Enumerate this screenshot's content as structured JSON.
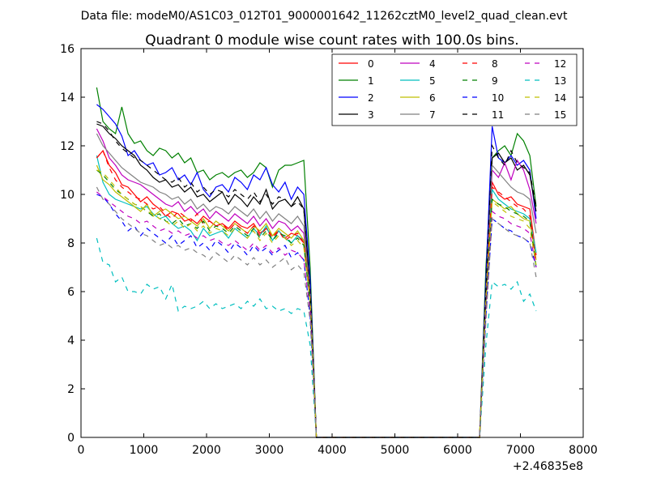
{
  "chart_data": {
    "type": "line",
    "suptitle": "Data file: modeM0/AS1C03_012T01_9000001642_11262cztM0_level2_quad_clean.evt",
    "title": "Quadrant 0 module wise count rates with 100.0s bins.",
    "xlabel": "",
    "ylabel": "",
    "offset_text": "+2.46835e8",
    "xlim": [
      0,
      8000
    ],
    "ylim": [
      0,
      16
    ],
    "xticks": [
      0,
      1000,
      2000,
      3000,
      4000,
      5000,
      6000,
      7000,
      8000
    ],
    "yticks": [
      0,
      2,
      4,
      6,
      8,
      10,
      12,
      14,
      16
    ],
    "grid": false,
    "legend_position": "top-right",
    "x": [
      250,
      350,
      450,
      550,
      650,
      750,
      850,
      950,
      1050,
      1150,
      1250,
      1350,
      1450,
      1550,
      1650,
      1750,
      1850,
      1950,
      2050,
      2150,
      2250,
      2350,
      2450,
      2550,
      2650,
      2750,
      2850,
      2950,
      3050,
      3150,
      3250,
      3350,
      3450,
      3550,
      3650,
      3750,
      3850,
      3950,
      4050,
      4150,
      4250,
      4350,
      4450,
      4550,
      4650,
      4750,
      4850,
      4950,
      5050,
      5150,
      5250,
      5350,
      5450,
      5550,
      5650,
      5750,
      5850,
      5950,
      6050,
      6150,
      6250,
      6350,
      6450,
      6550,
      6650,
      6750,
      6850,
      6950,
      7050,
      7150,
      7250
    ],
    "series": [
      {
        "name": "0",
        "color": "#ff0000",
        "dash": "solid",
        "values": [
          11.5,
          11.8,
          11.2,
          10.9,
          10.4,
          10.3,
          10.0,
          9.7,
          9.9,
          9.6,
          9.4,
          9.1,
          9.3,
          9.2,
          8.9,
          9.0,
          8.8,
          9.1,
          8.9,
          8.7,
          8.8,
          8.6,
          8.9,
          8.7,
          8.6,
          8.8,
          8.4,
          8.6,
          8.3,
          8.5,
          8.2,
          8.4,
          8.3,
          8.0,
          6.0,
          0.0,
          0,
          0,
          0,
          0,
          0,
          0,
          0,
          0,
          0,
          0,
          0,
          0,
          0,
          0,
          0,
          0,
          0,
          0,
          0,
          0,
          0,
          0,
          0,
          0,
          0,
          0,
          6.0,
          10.5,
          10.0,
          9.8,
          9.9,
          9.6,
          9.5,
          9.4,
          7.5
        ]
      },
      {
        "name": "1",
        "color": "#008000",
        "dash": "solid",
        "values": [
          14.4,
          13.0,
          12.7,
          12.5,
          13.6,
          12.5,
          12.1,
          12.2,
          11.8,
          11.6,
          11.9,
          11.8,
          11.5,
          11.7,
          11.3,
          11.5,
          10.9,
          11.0,
          10.6,
          10.8,
          10.9,
          10.7,
          10.9,
          11.0,
          10.7,
          10.9,
          11.3,
          11.1,
          10.3,
          11.0,
          11.2,
          11.2,
          11.3,
          11.4,
          7.0,
          0.0,
          0,
          0,
          0,
          0,
          0,
          0,
          0,
          0,
          0,
          0,
          0,
          0,
          0,
          0,
          0,
          0,
          0,
          0,
          0,
          0,
          0,
          0,
          0,
          0,
          0,
          0,
          7.0,
          11.5,
          11.8,
          12.0,
          11.6,
          12.5,
          12.2,
          11.6,
          9.5
        ]
      },
      {
        "name": "2",
        "color": "#0000ff",
        "dash": "solid",
        "values": [
          13.7,
          13.5,
          13.2,
          12.9,
          12.4,
          11.6,
          11.8,
          11.4,
          11.2,
          11.3,
          10.8,
          10.9,
          11.1,
          10.6,
          10.8,
          10.4,
          10.9,
          10.2,
          9.9,
          10.3,
          10.4,
          10.1,
          10.7,
          10.5,
          10.2,
          10.8,
          10.6,
          11.1,
          10.4,
          10.1,
          10.5,
          9.8,
          10.3,
          10.0,
          6.5,
          0.0,
          0,
          0,
          0,
          0,
          0,
          0,
          0,
          0,
          0,
          0,
          0,
          0,
          0,
          0,
          0,
          0,
          0,
          0,
          0,
          0,
          0,
          0,
          0,
          0,
          0,
          0,
          6.5,
          12.8,
          11.5,
          11.3,
          11.6,
          11.2,
          11.4,
          11.0,
          9.0
        ]
      },
      {
        "name": "3",
        "color": "#000000",
        "dash": "solid",
        "values": [
          12.9,
          12.8,
          12.5,
          12.3,
          12.0,
          11.8,
          11.6,
          11.2,
          11.0,
          10.7,
          10.5,
          10.6,
          10.3,
          10.4,
          10.1,
          10.3,
          9.9,
          10.0,
          9.7,
          9.9,
          10.1,
          9.6,
          10.0,
          9.8,
          9.5,
          9.9,
          9.6,
          10.2,
          9.4,
          9.7,
          9.8,
          9.5,
          9.9,
          9.4,
          6.0,
          0.0,
          0,
          0,
          0,
          0,
          0,
          0,
          0,
          0,
          0,
          0,
          0,
          0,
          0,
          0,
          0,
          0,
          0,
          0,
          0,
          0,
          0,
          0,
          0,
          0,
          0,
          0,
          6.0,
          11.5,
          11.7,
          11.3,
          11.5,
          11.0,
          11.2,
          10.8,
          9.3
        ]
      },
      {
        "name": "4",
        "color": "#bf00bf",
        "dash": "solid",
        "values": [
          12.7,
          12.2,
          11.5,
          11.2,
          10.8,
          10.6,
          10.5,
          10.4,
          10.2,
          10.0,
          9.8,
          9.6,
          9.5,
          9.7,
          9.3,
          9.5,
          9.2,
          9.4,
          9.0,
          9.3,
          9.1,
          8.9,
          9.2,
          9.0,
          8.8,
          9.1,
          8.7,
          9.0,
          8.6,
          8.9,
          8.8,
          8.5,
          8.7,
          8.4,
          5.8,
          0.0,
          0,
          0,
          0,
          0,
          0,
          0,
          0,
          0,
          0,
          0,
          0,
          0,
          0,
          0,
          0,
          0,
          0,
          0,
          0,
          0,
          0,
          0,
          0,
          0,
          0,
          0,
          5.8,
          11.0,
          10.7,
          11.3,
          10.6,
          11.4,
          11.0,
          10.2,
          8.8
        ]
      },
      {
        "name": "5",
        "color": "#00bfbf",
        "dash": "solid",
        "values": [
          11.6,
          10.5,
          10.0,
          9.8,
          9.7,
          9.6,
          9.5,
          9.4,
          9.5,
          9.2,
          9.0,
          9.1,
          8.8,
          8.6,
          8.7,
          8.5,
          8.1,
          8.6,
          8.3,
          8.4,
          8.5,
          8.2,
          8.6,
          8.4,
          8.2,
          8.6,
          8.3,
          8.7,
          8.1,
          8.5,
          8.2,
          8.0,
          8.3,
          8.1,
          5.5,
          0.0,
          0,
          0,
          0,
          0,
          0,
          0,
          0,
          0,
          0,
          0,
          0,
          0,
          0,
          0,
          0,
          0,
          0,
          0,
          0,
          0,
          0,
          0,
          0,
          0,
          0,
          0,
          5.5,
          10.2,
          9.8,
          9.6,
          9.4,
          9.3,
          9.2,
          9.0,
          7.6
        ]
      },
      {
        "name": "6",
        "color": "#bfbf00",
        "dash": "solid",
        "values": [
          11.2,
          10.6,
          10.4,
          10.1,
          9.9,
          9.7,
          9.5,
          9.3,
          9.6,
          9.1,
          9.3,
          9.4,
          9.2,
          9.0,
          9.1,
          8.9,
          8.7,
          9.0,
          8.6,
          8.9,
          8.7,
          8.5,
          8.8,
          8.6,
          8.4,
          8.7,
          8.5,
          8.8,
          8.3,
          8.6,
          8.4,
          8.2,
          8.5,
          8.1,
          5.6,
          0.0,
          0,
          0,
          0,
          0,
          0,
          0,
          0,
          0,
          0,
          0,
          0,
          0,
          0,
          0,
          0,
          0,
          0,
          0,
          0,
          0,
          0,
          0,
          0,
          0,
          0,
          0,
          5.6,
          9.8,
          9.6,
          9.4,
          9.5,
          9.2,
          9.0,
          8.9,
          7.3
        ]
      },
      {
        "name": "7",
        "color": "#808080",
        "dash": "solid",
        "values": [
          12.5,
          12.0,
          11.7,
          11.4,
          11.1,
          10.9,
          10.7,
          10.5,
          10.4,
          10.3,
          10.1,
          10.0,
          9.8,
          9.9,
          9.6,
          9.8,
          9.4,
          9.6,
          9.3,
          9.5,
          9.4,
          9.2,
          9.5,
          9.3,
          9.1,
          9.4,
          9.0,
          9.3,
          8.9,
          9.2,
          9.0,
          8.8,
          9.1,
          8.7,
          5.9,
          0.0,
          0,
          0,
          0,
          0,
          0,
          0,
          0,
          0,
          0,
          0,
          0,
          0,
          0,
          0,
          0,
          0,
          0,
          0,
          0,
          0,
          0,
          0,
          0,
          0,
          0,
          0,
          5.9,
          11.2,
          10.9,
          10.6,
          10.3,
          10.1,
          10.0,
          9.8,
          8.4
        ]
      },
      {
        "name": "8",
        "color": "#ff0000",
        "dash": "dashed",
        "values": [
          11.5,
          11.8,
          11.1,
          10.6,
          10.3,
          10.1,
          9.9,
          9.8,
          9.6,
          9.4,
          9.5,
          9.2,
          9.0,
          9.3,
          9.1,
          8.9,
          9.2,
          8.8,
          8.9,
          8.7,
          8.8,
          8.5,
          8.8,
          8.6,
          8.4,
          8.7,
          8.3,
          8.6,
          8.2,
          8.5,
          8.1,
          8.3,
          8.4,
          8.0,
          5.7,
          0.0,
          0,
          0,
          0,
          0,
          0,
          0,
          0,
          0,
          0,
          0,
          0,
          0,
          0,
          0,
          0,
          0,
          0,
          0,
          0,
          0,
          0,
          0,
          0,
          0,
          0,
          0,
          5.7,
          10.3,
          10.1,
          9.9,
          9.7,
          9.5,
          9.4,
          9.1,
          7.2
        ]
      },
      {
        "name": "9",
        "color": "#008000",
        "dash": "dashed",
        "values": [
          11.0,
          10.8,
          10.5,
          10.2,
          10.0,
          9.8,
          9.6,
          9.5,
          9.3,
          9.1,
          9.2,
          8.9,
          8.8,
          9.0,
          8.7,
          8.8,
          8.6,
          8.9,
          8.5,
          8.7,
          8.6,
          8.4,
          8.7,
          8.5,
          8.3,
          8.6,
          8.2,
          8.5,
          8.1,
          8.4,
          8.3,
          8.0,
          8.2,
          7.9,
          5.5,
          0.0,
          0,
          0,
          0,
          0,
          0,
          0,
          0,
          0,
          0,
          0,
          0,
          0,
          0,
          0,
          0,
          0,
          0,
          0,
          0,
          0,
          0,
          0,
          0,
          0,
          0,
          0,
          5.5,
          9.8,
          9.6,
          9.5,
          9.3,
          9.2,
          9.1,
          8.9,
          7.0
        ]
      },
      {
        "name": "10",
        "color": "#0000ff",
        "dash": "dashed",
        "values": [
          10.0,
          9.9,
          9.6,
          9.2,
          8.9,
          8.5,
          8.7,
          8.3,
          8.6,
          8.4,
          8.2,
          8.0,
          8.3,
          7.9,
          8.1,
          8.3,
          7.8,
          8.0,
          7.7,
          8.1,
          7.9,
          7.6,
          8.0,
          7.8,
          7.5,
          7.9,
          7.6,
          7.8,
          7.5,
          7.7,
          7.9,
          7.4,
          7.6,
          7.3,
          5.0,
          0.0,
          0,
          0,
          0,
          0,
          0,
          0,
          0,
          0,
          0,
          0,
          0,
          0,
          0,
          0,
          0,
          0,
          0,
          0,
          0,
          0,
          0,
          0,
          0,
          0,
          0,
          0,
          5.0,
          9.0,
          8.8,
          8.6,
          8.5,
          8.3,
          8.2,
          8.0,
          7.0
        ]
      },
      {
        "name": "11",
        "color": "#000000",
        "dash": "dashed",
        "values": [
          13.0,
          12.9,
          12.6,
          12.2,
          11.9,
          11.7,
          11.5,
          11.4,
          11.2,
          11.0,
          10.8,
          10.6,
          10.5,
          10.7,
          10.3,
          10.5,
          10.1,
          10.3,
          10.0,
          10.2,
          10.1,
          9.9,
          10.2,
          10.0,
          9.8,
          10.1,
          9.7,
          10.0,
          9.6,
          9.9,
          9.8,
          9.5,
          9.7,
          9.4,
          6.1,
          0.0,
          0,
          0,
          0,
          0,
          0,
          0,
          0,
          0,
          0,
          0,
          0,
          0,
          0,
          0,
          0,
          0,
          0,
          0,
          0,
          0,
          0,
          0,
          0,
          0,
          0,
          0,
          6.1,
          12.0,
          11.5,
          11.2,
          11.8,
          11.3,
          11.1,
          10.9,
          9.5
        ]
      },
      {
        "name": "12",
        "color": "#bf00bf",
        "dash": "dashed",
        "values": [
          10.1,
          9.9,
          9.7,
          9.5,
          9.3,
          9.1,
          9.0,
          8.8,
          8.9,
          8.7,
          8.5,
          8.6,
          8.4,
          8.5,
          8.3,
          8.4,
          8.2,
          8.3,
          8.1,
          8.2,
          8.0,
          7.9,
          8.1,
          7.9,
          7.7,
          8.0,
          7.7,
          7.9,
          7.6,
          7.8,
          7.5,
          7.7,
          7.6,
          7.3,
          5.2,
          0.0,
          0,
          0,
          0,
          0,
          0,
          0,
          0,
          0,
          0,
          0,
          0,
          0,
          0,
          0,
          0,
          0,
          0,
          0,
          0,
          0,
          0,
          0,
          0,
          0,
          0,
          0,
          5.2,
          9.3,
          9.1,
          9.0,
          8.8,
          8.7,
          8.6,
          8.4,
          7.0
        ]
      },
      {
        "name": "13",
        "color": "#00bfbf",
        "dash": "dashed",
        "values": [
          8.2,
          7.2,
          7.1,
          6.4,
          6.6,
          6.0,
          6.0,
          5.9,
          6.3,
          6.1,
          6.2,
          5.7,
          6.3,
          5.2,
          5.4,
          5.3,
          5.4,
          5.6,
          5.3,
          5.5,
          5.3,
          5.4,
          5.5,
          5.3,
          5.6,
          5.4,
          5.7,
          5.3,
          5.4,
          5.2,
          5.3,
          5.1,
          5.3,
          5.2,
          3.8,
          0.0,
          0,
          0,
          0,
          0,
          0,
          0,
          0,
          0,
          0,
          0,
          0,
          0,
          0,
          0,
          0,
          0,
          0,
          0,
          0,
          0,
          0,
          0,
          0,
          0,
          0,
          0,
          3.8,
          6.4,
          6.2,
          6.3,
          6.1,
          6.4,
          5.6,
          5.9,
          5.2
        ]
      },
      {
        "name": "14",
        "color": "#bfbf00",
        "dash": "dashed",
        "values": [
          11.0,
          10.9,
          10.6,
          10.3,
          10.0,
          9.8,
          9.6,
          9.5,
          9.3,
          9.2,
          9.0,
          8.9,
          8.7,
          8.9,
          8.6,
          8.8,
          8.5,
          8.7,
          8.4,
          8.6,
          8.5,
          8.3,
          8.6,
          8.4,
          8.2,
          8.5,
          8.1,
          8.4,
          8.0,
          8.3,
          8.2,
          7.9,
          8.1,
          7.8,
          5.6,
          0.0,
          0,
          0,
          0,
          0,
          0,
          0,
          0,
          0,
          0,
          0,
          0,
          0,
          0,
          0,
          0,
          0,
          0,
          0,
          0,
          0,
          0,
          0,
          0,
          0,
          0,
          0,
          5.6,
          9.7,
          9.5,
          9.3,
          9.1,
          9.0,
          8.9,
          8.6,
          7.1
        ]
      },
      {
        "name": "15",
        "color": "#808080",
        "dash": "dashed",
        "values": [
          10.3,
          9.8,
          9.6,
          9.3,
          9.0,
          8.8,
          8.6,
          8.4,
          8.3,
          8.1,
          7.9,
          8.0,
          7.8,
          7.9,
          7.7,
          7.8,
          7.6,
          7.5,
          7.3,
          7.6,
          7.4,
          7.2,
          7.5,
          7.3,
          7.1,
          7.4,
          7.1,
          7.3,
          7.0,
          7.2,
          7.4,
          6.9,
          7.1,
          6.8,
          4.8,
          0.0,
          0,
          0,
          0,
          0,
          0,
          0,
          0,
          0,
          0,
          0,
          0,
          0,
          0,
          0,
          0,
          0,
          0,
          0,
          0,
          0,
          0,
          0,
          0,
          0,
          0,
          0,
          4.8,
          9.0,
          8.8,
          8.6,
          8.4,
          8.3,
          8.2,
          8.0,
          6.6
        ]
      }
    ]
  }
}
